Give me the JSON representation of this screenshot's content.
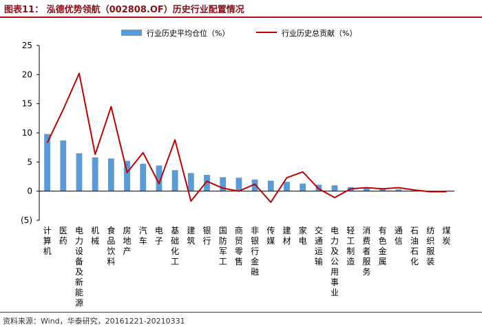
{
  "header": {
    "title": "图表11：  泓德优势领航（002808.OF）历史行业配置情况"
  },
  "footer": {
    "source": "资料来源：Wind，华泰研究，20161221-20210331"
  },
  "colors": {
    "bar": "#5b9bd5",
    "line": "#c00000",
    "accent": "#b40a1a"
  },
  "chart_data": {
    "type": "bar+line",
    "categories": [
      "计算机",
      "医药",
      "电力设备及新能源",
      "机械",
      "食品饮料",
      "房地产",
      "汽车",
      "电子",
      "基础化工",
      "建筑",
      "银行",
      "国防军工",
      "商贸零售",
      "非银行金融",
      "传媒",
      "建材",
      "家电",
      "交通运输",
      "电力及公用事业",
      "轻工制造",
      "消费者服务",
      "有色金属",
      "通信",
      "石油石化",
      "纺织服装",
      "煤炭"
    ],
    "series": [
      {
        "name": "行业历史平均仓位（%）",
        "type": "bar",
        "values": [
          9.8,
          8.7,
          6.5,
          5.8,
          5.6,
          5.2,
          4.7,
          4.4,
          3.6,
          3.1,
          2.8,
          2.4,
          2.3,
          2.0,
          1.8,
          1.6,
          1.3,
          1.1,
          1.0,
          0.7,
          0.6,
          0.5,
          0.3,
          0.1,
          0.05,
          0.02
        ]
      },
      {
        "name": "行业历史总贡献（%）",
        "type": "line",
        "values": [
          8.3,
          14.0,
          20.2,
          6.3,
          14.5,
          3.2,
          6.6,
          1.3,
          8.8,
          -1.7,
          1.7,
          0.5,
          0.0,
          1.2,
          -1.9,
          2.3,
          3.3,
          0.4,
          -1.1,
          0.4,
          0.6,
          0.4,
          0.6,
          0.2,
          -0.1,
          -0.1
        ]
      }
    ],
    "yticks": [
      "25",
      "20",
      "15",
      "10",
      "5",
      "0",
      "(5)"
    ],
    "ylim": [
      -5,
      25
    ],
    "grid": false,
    "legend_position": "top"
  }
}
